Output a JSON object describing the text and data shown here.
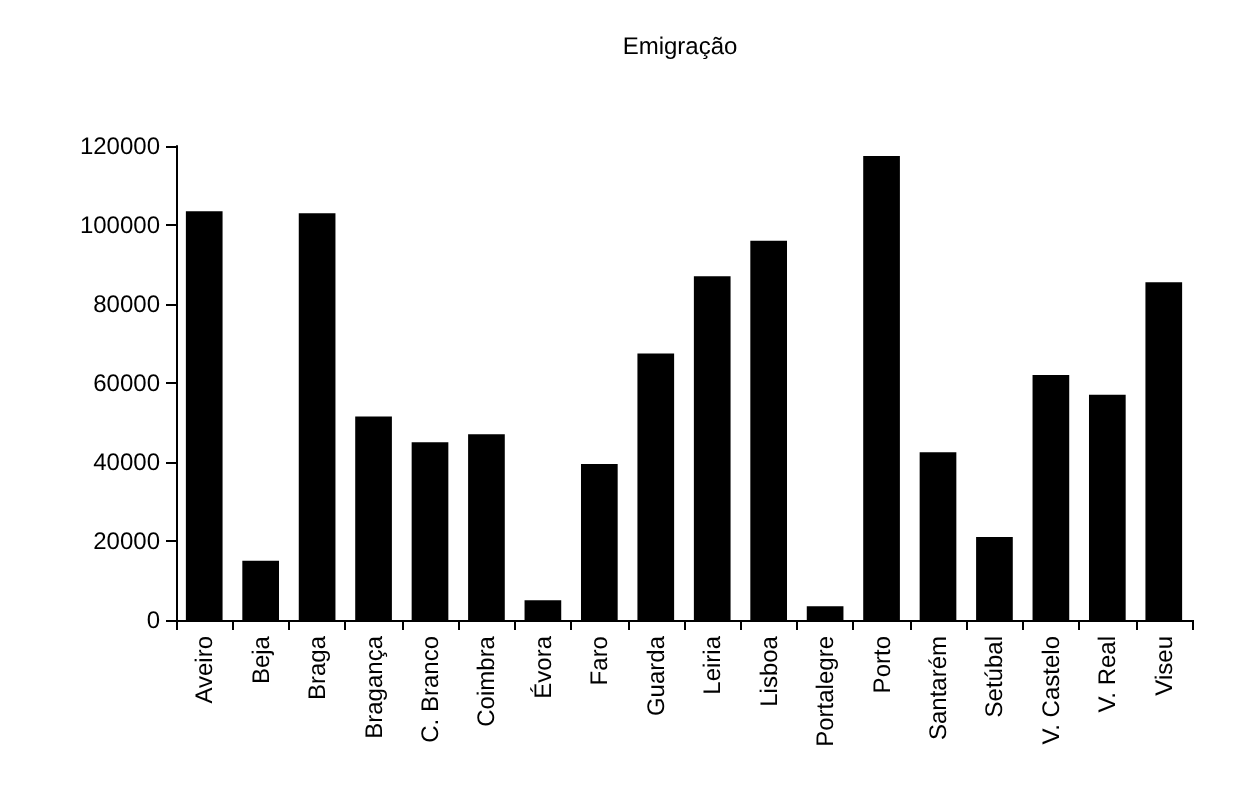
{
  "chart_data": {
    "type": "bar",
    "title": "Emigração",
    "categories": [
      "Aveiro",
      "Beja",
      "Braga",
      "Bragança",
      "C. Branco",
      "Coimbra",
      "Évora",
      "Faro",
      "Guarda",
      "Leiria",
      "Lisboa",
      "Portalegre",
      "Porto",
      "Santarém",
      "Setúbal",
      "V. Castelo",
      "V. Real",
      "Viseu"
    ],
    "values": [
      103500,
      15000,
      103000,
      51500,
      45000,
      47000,
      5000,
      39500,
      67500,
      87000,
      96000,
      3500,
      117500,
      42500,
      21000,
      62000,
      57000,
      85500
    ],
    "color": "#000000",
    "ylim": [
      0,
      120000
    ],
    "yticks": [
      0,
      20000,
      40000,
      60000,
      80000,
      100000,
      120000
    ],
    "grid": false
  }
}
